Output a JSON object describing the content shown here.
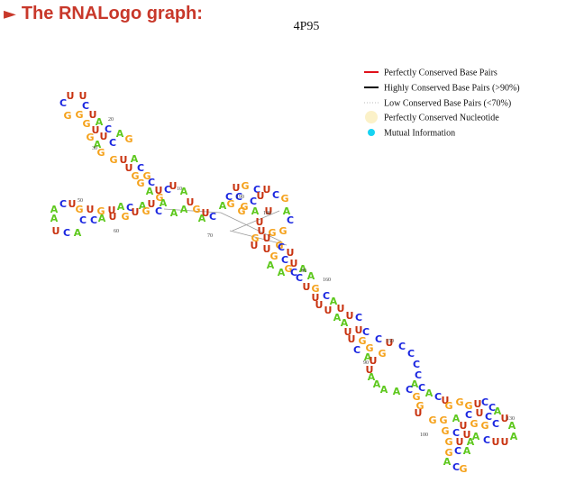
{
  "header": {
    "title": "The RNALogo graph:",
    "molecule": "4P95"
  },
  "legend": [
    {
      "label": "Perfectly Conserved Base Pairs",
      "kind": "line",
      "color": "#e0101a"
    },
    {
      "label": "Highly Conserved Base Pairs (>90%)",
      "kind": "line",
      "color": "#000000"
    },
    {
      "label": "Low Conserved Base Pairs (<70%)",
      "kind": "dotted",
      "color": "#b9b9b9"
    },
    {
      "label": "Perfectly Conserved Nucleotide",
      "kind": "circle",
      "color": "#fbf1c8"
    },
    {
      "label": "Mutual Information",
      "kind": "dot",
      "color": "#17d3f2"
    }
  ],
  "colors": {
    "A": "#5ec81e",
    "C": "#1a26e0",
    "G": "#f5a21c",
    "U": "#c8320f",
    "title": "#c8382a"
  },
  "numbers": [
    "10",
    "20",
    "30",
    "50",
    "60",
    "70",
    "80",
    "90",
    "100",
    "130",
    "150",
    "160",
    "180",
    "190"
  ]
}
